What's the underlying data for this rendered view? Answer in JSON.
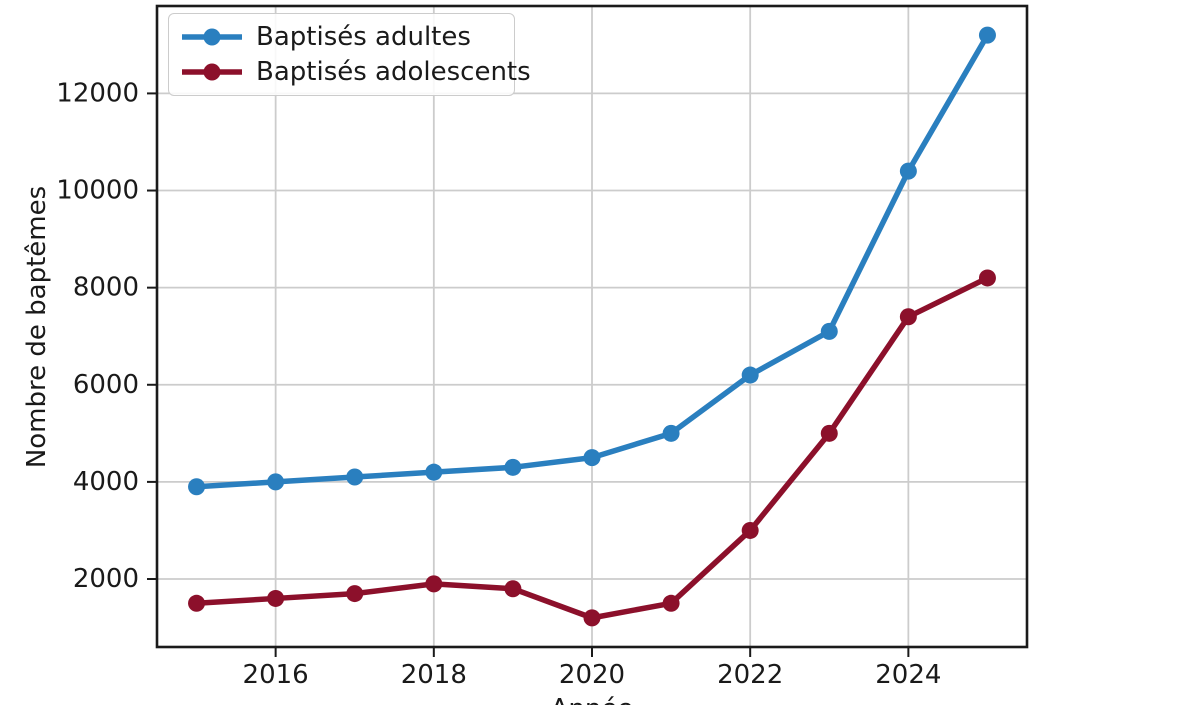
{
  "figure": {
    "background": "#ffffff",
    "axis_color": "#1a1a1a",
    "grid_color": "#cccccc",
    "legend_border_color": "#cccccc"
  },
  "chart_data": {
    "type": "line",
    "title": "",
    "xlabel": "Année",
    "ylabel": "Nombre de baptêmes",
    "x": [
      2015,
      2016,
      2017,
      2018,
      2019,
      2020,
      2021,
      2022,
      2023,
      2024,
      2025
    ],
    "series": [
      {
        "name": "Baptisés adultes",
        "color": "#2a7fbf",
        "values": [
          3900,
          4000,
          4100,
          4200,
          4300,
          4500,
          5000,
          6200,
          7100,
          10400,
          13200
        ]
      },
      {
        "name": "Baptisés adolescents",
        "color": "#8c102b",
        "values": [
          1500,
          1600,
          1700,
          1900,
          1800,
          1200,
          1500,
          3000,
          5000,
          7400,
          8200
        ]
      }
    ],
    "xlim": [
      2014.5,
      2025.5
    ],
    "ylim": [
      600,
      13800
    ],
    "xticks": [
      2016,
      2018,
      2020,
      2022,
      2024
    ],
    "yticks": [
      2000,
      4000,
      6000,
      8000,
      10000,
      12000
    ],
    "grid": true,
    "legend_position": "upper-left"
  }
}
